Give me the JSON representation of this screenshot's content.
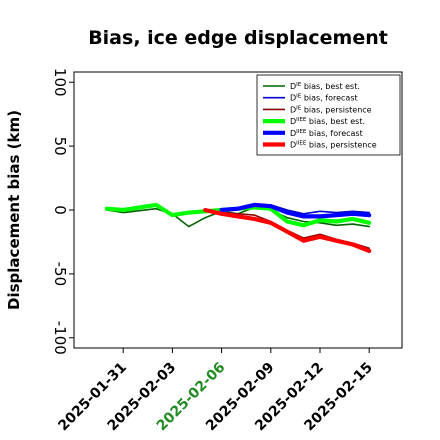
{
  "chart_data": {
    "type": "line",
    "title": "Bias, ice edge displacement",
    "ylabel": "Displacement bias (km)",
    "xlabel": "",
    "ylim": [
      -108,
      108
    ],
    "xlim": [
      "2025-01-28",
      "2025-02-17"
    ],
    "yticks": [
      {
        "value": 100,
        "label": "100"
      },
      {
        "value": 50,
        "label": "50"
      },
      {
        "value": 0,
        "label": "0"
      },
      {
        "value": -50,
        "label": "-50"
      },
      {
        "value": -100,
        "label": "-100"
      }
    ],
    "xticks": [
      {
        "date": "2025-01-31",
        "label": "2025-01-31",
        "color": "#000000"
      },
      {
        "date": "2025-02-03",
        "label": "2025-02-03",
        "color": "#000000"
      },
      {
        "date": "2025-02-06",
        "label": "2025-02-06",
        "color": "#228b22"
      },
      {
        "date": "2025-02-09",
        "label": "2025-02-09",
        "color": "#000000"
      },
      {
        "date": "2025-02-12",
        "label": "2025-02-12",
        "color": "#000000"
      },
      {
        "date": "2025-02-15",
        "label": "2025-02-15",
        "color": "#000000"
      }
    ],
    "grid": false,
    "legend_position": "top-right",
    "series": [
      {
        "name": "D^IE bias, best est.",
        "base": "D",
        "sup": "IE",
        "suffix": " bias, best est.",
        "color": "#006400",
        "width": 1.6,
        "points": [
          [
            "2025-01-30",
            0
          ],
          [
            "2025-01-31",
            -2
          ],
          [
            "2025-02-02",
            1
          ],
          [
            "2025-02-03",
            -3
          ],
          [
            "2025-02-04",
            -13
          ],
          [
            "2025-02-05",
            -6
          ],
          [
            "2025-02-06",
            -1
          ],
          [
            "2025-02-07",
            -3
          ],
          [
            "2025-02-08",
            2
          ],
          [
            "2025-02-09",
            0
          ],
          [
            "2025-02-10",
            -6
          ],
          [
            "2025-02-11",
            -9
          ],
          [
            "2025-02-12",
            -10
          ],
          [
            "2025-02-13",
            -12
          ],
          [
            "2025-02-14",
            -11
          ],
          [
            "2025-02-15",
            -13
          ]
        ]
      },
      {
        "name": "D^IE bias, forecast",
        "base": "D",
        "sup": "IE",
        "suffix": " bias, forecast",
        "color": "#0000cd",
        "width": 1.6,
        "points": [
          [
            "2025-02-06",
            0
          ],
          [
            "2025-02-07",
            1
          ],
          [
            "2025-02-08",
            4
          ],
          [
            "2025-02-09",
            4
          ],
          [
            "2025-02-10",
            0
          ],
          [
            "2025-02-11",
            -3
          ],
          [
            "2025-02-12",
            -1
          ],
          [
            "2025-02-13",
            -2
          ],
          [
            "2025-02-14",
            -1
          ],
          [
            "2025-02-15",
            -2
          ]
        ]
      },
      {
        "name": "D^IE bias, persistence",
        "base": "D",
        "sup": "IE",
        "suffix": " bias, persistence",
        "color": "#8b0000",
        "width": 1.6,
        "points": [
          [
            "2025-02-05",
            0
          ],
          [
            "2025-02-06",
            -2
          ],
          [
            "2025-02-07",
            -3
          ],
          [
            "2025-02-08",
            -4
          ],
          [
            "2025-02-09",
            -9
          ],
          [
            "2025-02-10",
            -16
          ],
          [
            "2025-02-11",
            -22
          ],
          [
            "2025-02-12",
            -19
          ],
          [
            "2025-02-13",
            -23
          ],
          [
            "2025-02-14",
            -26
          ],
          [
            "2025-02-15",
            -30
          ]
        ]
      },
      {
        "name": "D^IIEE bias, best est.",
        "base": "D",
        "sup": "IIEE",
        "suffix": " bias, best est.",
        "color": "#00ff00",
        "width": 4.2,
        "points": [
          [
            "2025-01-30",
            1
          ],
          [
            "2025-01-31",
            0
          ],
          [
            "2025-02-02",
            4
          ],
          [
            "2025-02-03",
            -4
          ],
          [
            "2025-02-04",
            -2
          ],
          [
            "2025-02-05",
            -1
          ],
          [
            "2025-02-06",
            0
          ],
          [
            "2025-02-07",
            1
          ],
          [
            "2025-02-08",
            2
          ],
          [
            "2025-02-09",
            1
          ],
          [
            "2025-02-10",
            -9
          ],
          [
            "2025-02-11",
            -12
          ],
          [
            "2025-02-12",
            -8
          ],
          [
            "2025-02-13",
            -9
          ],
          [
            "2025-02-14",
            -7
          ],
          [
            "2025-02-15",
            -10
          ]
        ]
      },
      {
        "name": "D^IIEE bias, forecast",
        "base": "D",
        "sup": "IIEE",
        "suffix": " bias, forecast",
        "color": "#0000ff",
        "width": 4.2,
        "points": [
          [
            "2025-02-06",
            0
          ],
          [
            "2025-02-07",
            1
          ],
          [
            "2025-02-08",
            4
          ],
          [
            "2025-02-09",
            3
          ],
          [
            "2025-02-10",
            -2
          ],
          [
            "2025-02-11",
            -5
          ],
          [
            "2025-02-12",
            -5
          ],
          [
            "2025-02-13",
            -4
          ],
          [
            "2025-02-14",
            -3
          ],
          [
            "2025-02-15",
            -4
          ]
        ]
      },
      {
        "name": "D^IIEE bias, persistence",
        "base": "D",
        "sup": "IIEE",
        "suffix": " bias, persistence",
        "color": "#ff0000",
        "width": 4.2,
        "points": [
          [
            "2025-02-05",
            0
          ],
          [
            "2025-02-06",
            -3
          ],
          [
            "2025-02-07",
            -5
          ],
          [
            "2025-02-08",
            -7
          ],
          [
            "2025-02-09",
            -10
          ],
          [
            "2025-02-10",
            -17
          ],
          [
            "2025-02-11",
            -24
          ],
          [
            "2025-02-12",
            -21
          ],
          [
            "2025-02-13",
            -24
          ],
          [
            "2025-02-14",
            -27
          ],
          [
            "2025-02-15",
            -32
          ]
        ]
      }
    ]
  }
}
